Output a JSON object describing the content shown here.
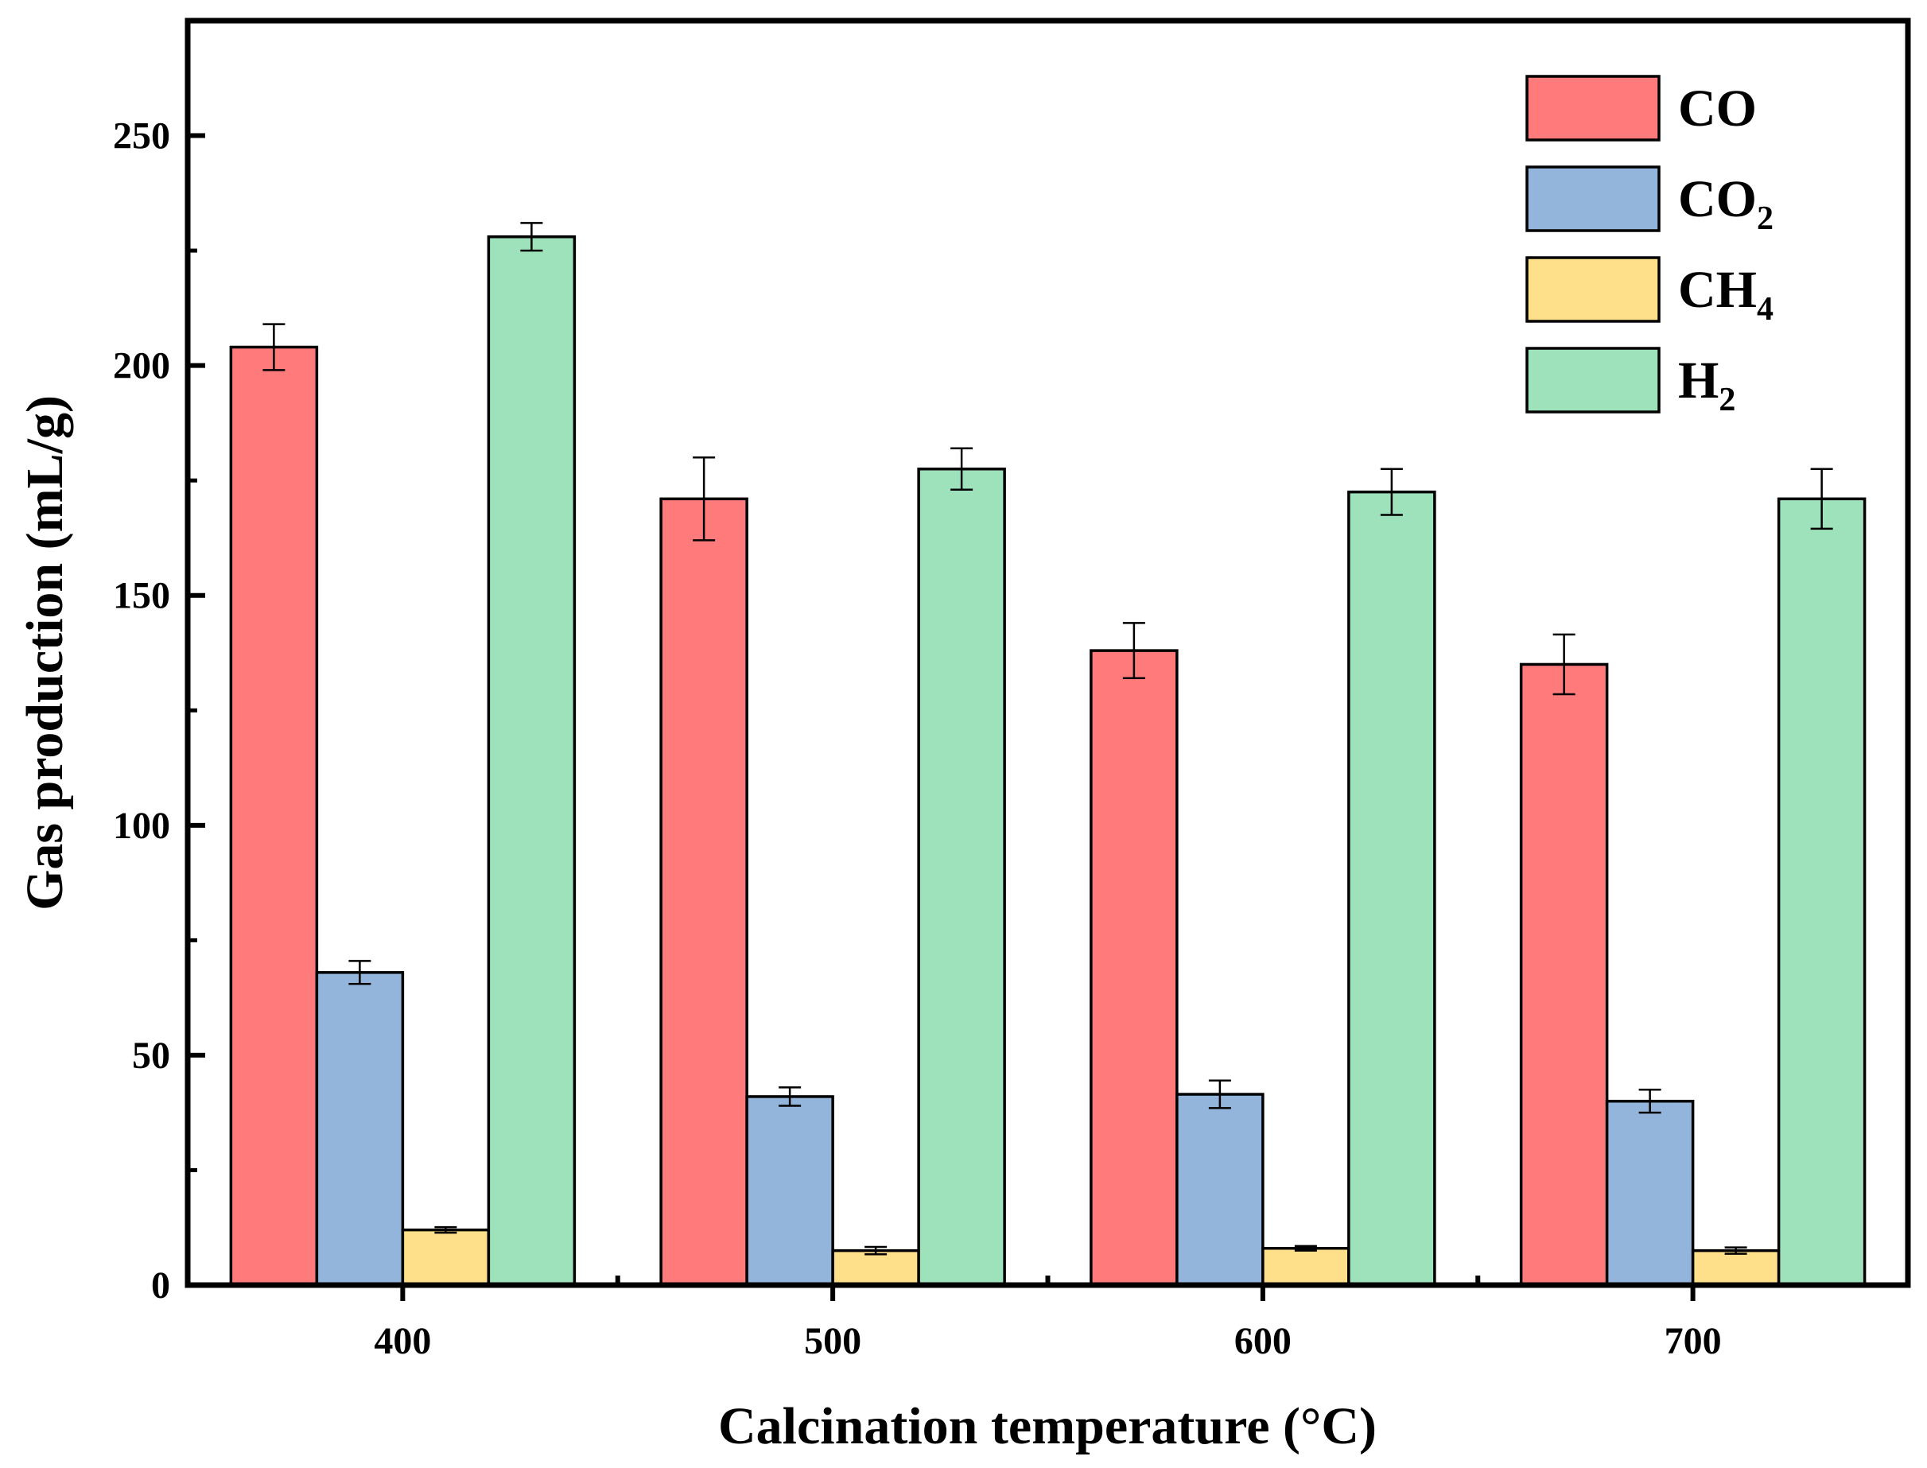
{
  "chart_data": {
    "type": "bar",
    "title": "",
    "xlabel": "Calcination temperature (°C)",
    "ylabel": "Gas production (mL/g)",
    "categories": [
      "400",
      "500",
      "600",
      "700"
    ],
    "ylim": [
      0,
      275
    ],
    "yticks": [
      0,
      50,
      100,
      150,
      200,
      250
    ],
    "ytick_labels": [
      "0",
      "50",
      "100",
      "150",
      "200",
      "250"
    ],
    "legend_position": "top-right",
    "series": [
      {
        "name": "CO",
        "label_main": "CO",
        "label_sub": "",
        "color": "#FF7B7B",
        "values": [
          204,
          171,
          138,
          135
        ],
        "errors": [
          5,
          9,
          6,
          6.5
        ]
      },
      {
        "name": "CO2",
        "label_main": "CO",
        "label_sub": "2",
        "color": "#93B5DB",
        "values": [
          68,
          41,
          41.5,
          40
        ],
        "errors": [
          2.5,
          2,
          3,
          2.5
        ]
      },
      {
        "name": "CH4",
        "label_main": "CH",
        "label_sub": "4",
        "color": "#FFE08A",
        "values": [
          12,
          7.5,
          8,
          7.5
        ],
        "errors": [
          0.6,
          0.8,
          0.5,
          0.7
        ]
      },
      {
        "name": "H2",
        "label_main": "H",
        "label_sub": "2",
        "color": "#9DE2BA",
        "values": [
          228,
          177.5,
          172.5,
          171
        ],
        "errors": [
          3,
          4.5,
          5,
          6.5
        ]
      }
    ]
  }
}
